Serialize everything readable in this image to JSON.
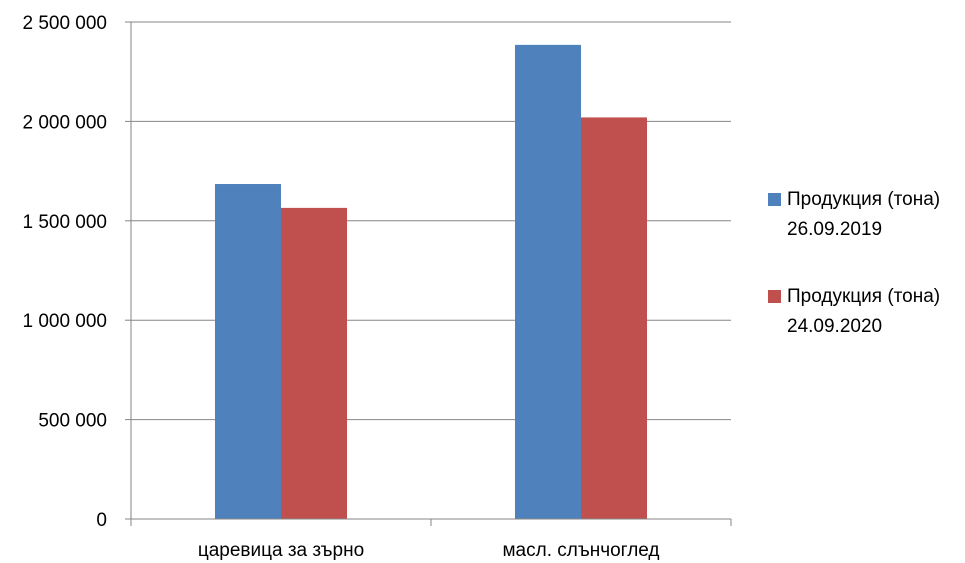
{
  "chart_data": {
    "type": "bar",
    "title": "",
    "xlabel": "",
    "ylabel": "",
    "categories": [
      "царевица за зърно",
      "масл. слънчоглед"
    ],
    "series": [
      {
        "name": "Продукция (тона) 26.09.2019",
        "name_lines": [
          "Продукция (тона)",
          "26.09.2019"
        ],
        "color": "#4f81bd",
        "values": [
          1685000,
          2385000
        ]
      },
      {
        "name": "Продукция (тона) 24.09.2020",
        "name_lines": [
          "Продукция (тона)",
          "24.09.2020"
        ],
        "color": "#c0504d",
        "values": [
          1565000,
          2020000
        ]
      }
    ],
    "ylim": [
      0,
      2500000
    ],
    "yticks": [
      0,
      500000,
      1000000,
      1500000,
      2000000,
      2500000
    ],
    "ytick_labels": [
      "0",
      "500 000",
      "1 000 000",
      "1 500 000",
      "2 000 000",
      "2 500 000"
    ],
    "grid": true,
    "legend_position": "right"
  }
}
